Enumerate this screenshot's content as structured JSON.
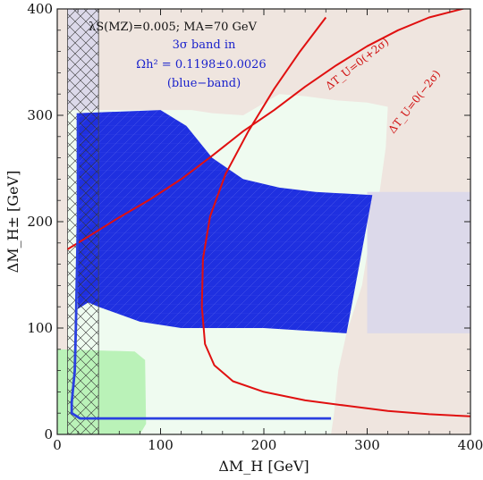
{
  "chart_data": {
    "type": "area",
    "title": "",
    "xlabel": "ΔM_H [GeV]",
    "ylabel": "ΔM_H± [GeV]",
    "xlim": [
      0,
      400
    ],
    "ylim": [
      0,
      400
    ],
    "xticks": [
      0,
      100,
      200,
      300,
      400
    ],
    "yticks": [
      0,
      100,
      200,
      300,
      400
    ],
    "grid": false,
    "annotations": {
      "params": "λS(MZ)=0.005; MA=70 GeV",
      "band_line1": "3σ band in",
      "band_line2": "Ωh² = 0.1198±0.0026",
      "band_line3": "(blue−band)",
      "curve_plus": "ΔT_U=0(+2σ)",
      "curve_minus": "ΔT_U=0(−2σ)"
    },
    "colors": {
      "blue_band": "#1f30e0",
      "light_green": "#effbf0",
      "green": "#baf2b8",
      "beige": "#efe5df",
      "lavender": "#dcd9ea",
      "red_curve": "#e01010",
      "blue_line": "#2a40e0"
    },
    "regions": {
      "beige_top_left": [
        [
          0,
          400
        ],
        [
          80,
          400
        ],
        [
          90,
          372
        ],
        [
          108,
          342
        ],
        [
          125,
          318
        ],
        [
          75,
          305
        ],
        [
          0,
          305
        ]
      ],
      "lavender_strip": [
        [
          10,
          400
        ],
        [
          40,
          400
        ],
        [
          40,
          305
        ],
        [
          10,
          305
        ]
      ],
      "light_green_region": [
        [
          10,
          305
        ],
        [
          75,
          305
        ],
        [
          130,
          305
        ],
        [
          150,
          302
        ],
        [
          180,
          300
        ],
        [
          215,
          320
        ],
        [
          240,
          318
        ],
        [
          270,
          314
        ],
        [
          300,
          312
        ],
        [
          320,
          308
        ],
        [
          318,
          270
        ],
        [
          312,
          228
        ],
        [
          305,
          200
        ],
        [
          295,
          140
        ],
        [
          280,
          95
        ],
        [
          272,
          60
        ],
        [
          268,
          20
        ],
        [
          265,
          0
        ],
        [
          10,
          0
        ]
      ],
      "green_bottom_left": [
        [
          0,
          80
        ],
        [
          75,
          78
        ],
        [
          85,
          70
        ],
        [
          86,
          10
        ],
        [
          80,
          0
        ],
        [
          0,
          0
        ]
      ],
      "lavender_right": [
        [
          300,
          228
        ],
        [
          400,
          228
        ],
        [
          400,
          95
        ],
        [
          300,
          95
        ]
      ],
      "blue_band": [
        [
          20,
          302
        ],
        [
          100,
          305
        ],
        [
          125,
          290
        ],
        [
          150,
          260
        ],
        [
          180,
          240
        ],
        [
          215,
          232
        ],
        [
          250,
          228
        ],
        [
          305,
          225
        ],
        [
          280,
          95
        ],
        [
          200,
          100
        ],
        [
          120,
          100
        ],
        [
          80,
          106
        ],
        [
          40,
          120
        ],
        [
          30,
          124
        ],
        [
          20,
          118
        ]
      ],
      "hatch_column": [
        [
          10,
          0
        ],
        [
          40,
          0
        ],
        [
          40,
          400
        ],
        [
          10,
          400
        ]
      ]
    },
    "series": [
      {
        "name": "ΔT_U=0(+2σ)",
        "x": [
          10,
          30,
          60,
          90,
          120,
          150,
          180,
          210,
          240,
          270,
          300,
          330,
          360,
          400
        ],
        "y": [
          174,
          186,
          204,
          221,
          240,
          262,
          285,
          305,
          327,
          347,
          365,
          380,
          392,
          402
        ]
      },
      {
        "name": "ΔT_U=0(−2σ)",
        "x": [
          260,
          235,
          210,
          185,
          163,
          148,
          141,
          140,
          143,
          152,
          170,
          200,
          240,
          280,
          320,
          360,
          400
        ],
        "y": [
          392,
          360,
          325,
          285,
          245,
          205,
          165,
          120,
          85,
          65,
          50,
          40,
          32,
          27,
          22,
          19,
          17
        ]
      },
      {
        "name": "blue-band-lower-boundary",
        "x": [
          20,
          20,
          18,
          17,
          14,
          14,
          22,
          50,
          100,
          200,
          265
        ],
        "y": [
          302,
          200,
          100,
          60,
          30,
          20,
          15,
          15,
          15,
          15,
          15
        ]
      }
    ]
  }
}
